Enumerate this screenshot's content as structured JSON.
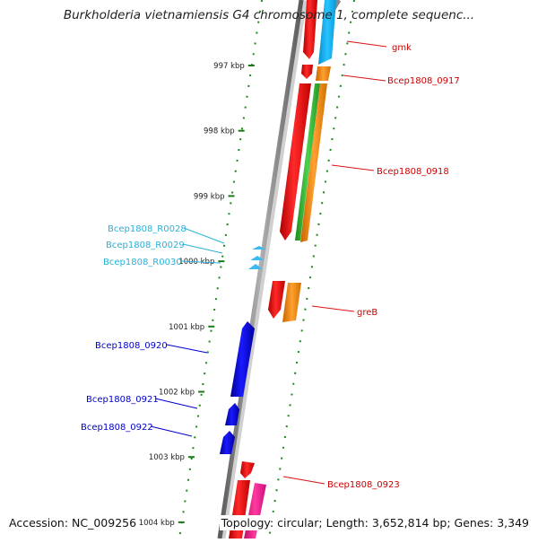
{
  "title": "Burkholderia vietnamiensis G4 chromosome 1, complete sequenc...",
  "footer": {
    "accession": "Accession: NC_009256",
    "topology": "Topology: circular; Length: 3,652,814 bp; Genes: 3,349"
  },
  "scale": {
    "ticks": [
      "997 kbp",
      "998 kbp",
      "999 kbp",
      "1000 kbp",
      "1001 kbp",
      "1002 kbp",
      "1003 kbp",
      "1004 kbp"
    ]
  },
  "colors": {
    "backbone": "#808080",
    "forward_gene": "#ff0000",
    "reverse_gene": "#0000ff",
    "rna": "#3dbbf0",
    "tick": "#1a7a1a",
    "forward_label": "#cc0000",
    "reverse_label": "#0000cc",
    "rna_label": "#2ab0d8",
    "cyan_cds": "#11b4f0",
    "orange_cds": "#ff8c00",
    "green_cds": "#33bb33",
    "magenta_cds": "#ff1493"
  },
  "features": [
    {
      "name": "gmk",
      "strand": "+",
      "label": "gmk"
    },
    {
      "name": "Bcep1808_0917",
      "strand": "+",
      "label": "Bcep1808_0917"
    },
    {
      "name": "Bcep1808_0918",
      "strand": "+",
      "label": "Bcep1808_0918"
    },
    {
      "name": "Bcep1808_R0028",
      "strand": "-",
      "type": "tRNA",
      "label": "Bcep1808_R0028"
    },
    {
      "name": "Bcep1808_R0029",
      "strand": "-",
      "type": "tRNA",
      "label": "Bcep1808_R0029"
    },
    {
      "name": "Bcep1808_R0030",
      "strand": "-",
      "type": "tRNA",
      "label": "Bcep1808_R0030"
    },
    {
      "name": "greB",
      "strand": "+",
      "label": "greB"
    },
    {
      "name": "Bcep1808_0920",
      "strand": "-",
      "label": "Bcep1808_0920"
    },
    {
      "name": "Bcep1808_0921",
      "strand": "-",
      "label": "Bcep1808_0921"
    },
    {
      "name": "Bcep1808_0922",
      "strand": "-",
      "label": "Bcep1808_0922"
    },
    {
      "name": "Bcep1808_0923",
      "strand": "+",
      "label": "Bcep1808_0923"
    }
  ]
}
